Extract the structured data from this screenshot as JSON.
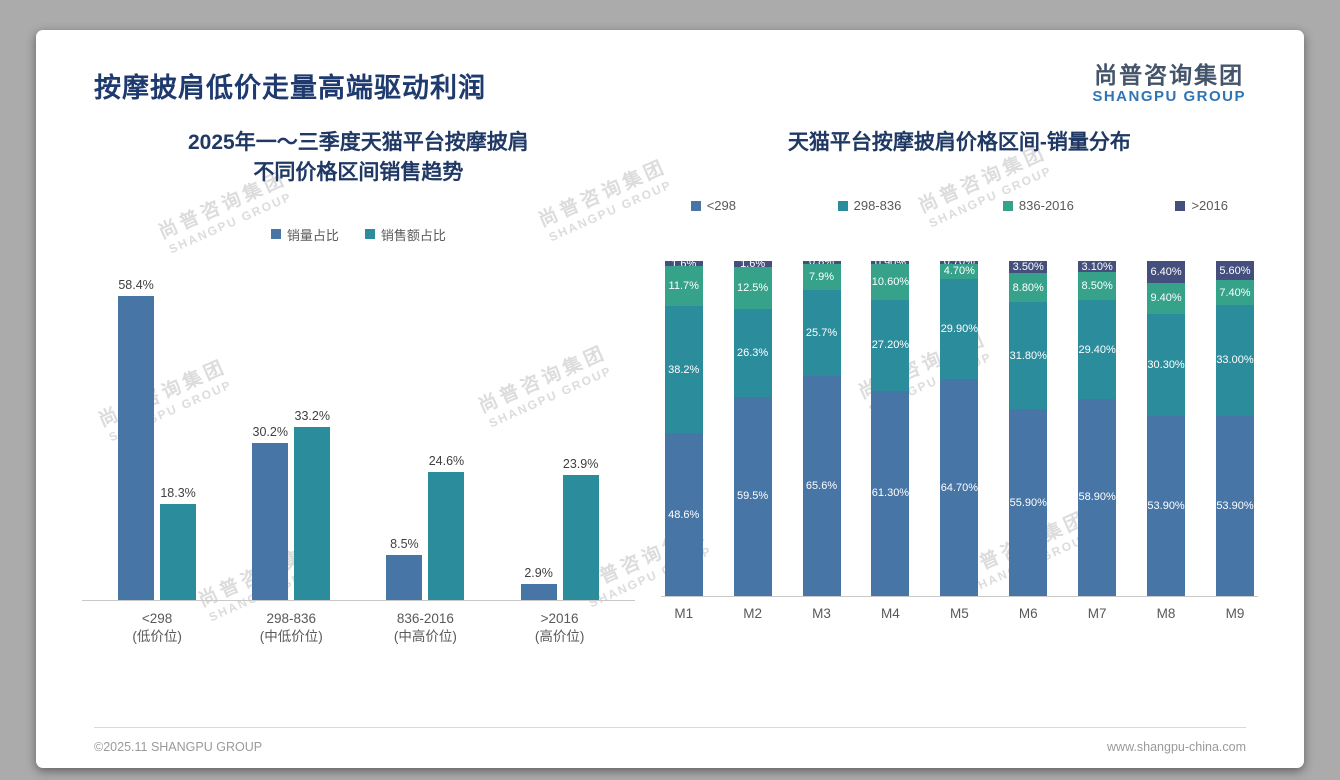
{
  "header": {
    "title": "按摩披肩低价走量高端驱动利润"
  },
  "logo": {
    "cn": "尚普咨询集团",
    "en": "SHANGPU GROUP"
  },
  "watermark": {
    "cn": "尚普咨询集团",
    "en": "SHANGPU GROUP"
  },
  "footer": {
    "copyright": "©2025.11 SHANGPU GROUP",
    "website": "www.shangpu-china.com"
  },
  "colors": {
    "blue": "#4775a6",
    "teal": "#2b8c9b",
    "green": "#36a28a",
    "navy": "#454f7d"
  },
  "chart_data": [
    {
      "type": "bar",
      "title_line1": "2025年一～三季度天猫平台按摩披肩",
      "title_line2": "不同价格区间销售趋势",
      "categories": [
        "<298",
        "298-836",
        "836-2016",
        ">2016"
      ],
      "category_sublabels": [
        "(低价位)",
        "(中低价位)",
        "(中高价位)",
        "(高价位)"
      ],
      "series": [
        {
          "name": "销量占比",
          "color_key": "blue",
          "values": [
            58.4,
            30.2,
            8.5,
            2.9
          ]
        },
        {
          "name": "销售额占比",
          "color_key": "teal",
          "values": [
            18.3,
            33.2,
            24.6,
            23.9
          ]
        }
      ],
      "value_suffix": "%",
      "ylim": [
        0,
        65
      ],
      "legend_position": "top",
      "grid": false
    },
    {
      "type": "stacked-bar",
      "title": "天猫平台按摩披肩价格区间-销量分布",
      "categories": [
        "M1",
        "M2",
        "M3",
        "M4",
        "M5",
        "M6",
        "M7",
        "M8",
        "M9"
      ],
      "series": [
        {
          "name": "<298",
          "color_key": "blue",
          "values": [
            48.6,
            59.5,
            65.6,
            61.3,
            64.7,
            55.9,
            58.9,
            53.9,
            53.9
          ]
        },
        {
          "name": "298-836",
          "color_key": "teal",
          "values": [
            38.2,
            26.3,
            25.7,
            27.2,
            29.9,
            31.8,
            29.4,
            30.3,
            33.0
          ]
        },
        {
          "name": "836-2016",
          "color_key": "green",
          "values": [
            11.7,
            12.5,
            7.9,
            10.6,
            4.7,
            8.8,
            8.5,
            9.4,
            7.4
          ]
        },
        {
          "name": ">2016",
          "color_key": "navy",
          "values": [
            1.6,
            1.6,
            0.8,
            0.9,
            0.7,
            3.5,
            3.1,
            6.4,
            5.6
          ]
        }
      ],
      "labels": [
        [
          "48.6%",
          "59.5%",
          "65.6%",
          "61.30%",
          "64.70%",
          "55.90%",
          "58.90%",
          "53.90%",
          "53.90%"
        ],
        [
          "38.2%",
          "26.3%",
          "25.7%",
          "27.20%",
          "29.90%",
          "31.80%",
          "29.40%",
          "30.30%",
          "33.00%"
        ],
        [
          "11.7%",
          "12.5%",
          "7.9%",
          "10.60%",
          "4.70%",
          "8.80%",
          "8.50%",
          "9.40%",
          "7.40%"
        ],
        [
          "1.6%",
          "1.6%",
          "0.8%",
          "0.90%",
          "0.70%",
          "3.50%",
          "3.10%",
          "6.40%",
          "5.60%"
        ]
      ],
      "value_suffix": "%",
      "ylim": [
        0,
        100
      ],
      "legend_position": "top",
      "grid": false
    }
  ]
}
